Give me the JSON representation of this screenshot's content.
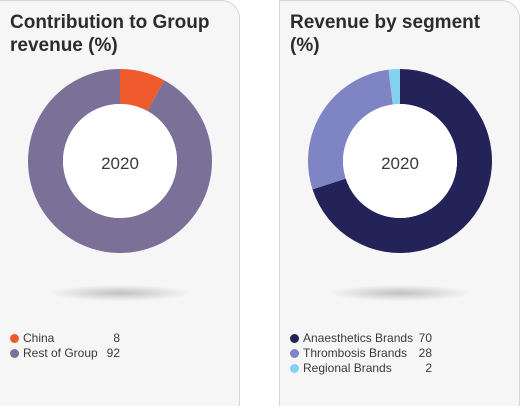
{
  "chart_data": [
    {
      "type": "pie",
      "title": "Contribution to Group revenue (%)",
      "center_label": "2020",
      "categories": [
        "China",
        "Rest of Group"
      ],
      "values": [
        8,
        92
      ],
      "colors": [
        "#ee5a2b",
        "#7b7097"
      ],
      "legend": "bottom-left"
    },
    {
      "type": "pie",
      "title": "Revenue by segment (%)",
      "center_label": "2020",
      "categories": [
        "Anaesthetics Brands",
        "Thrombosis Brands",
        "Regional Brands"
      ],
      "values": [
        70,
        28,
        2
      ],
      "colors": [
        "#23235a",
        "#7f85c4",
        "#83d0ef"
      ],
      "legend": "bottom-left"
    }
  ]
}
